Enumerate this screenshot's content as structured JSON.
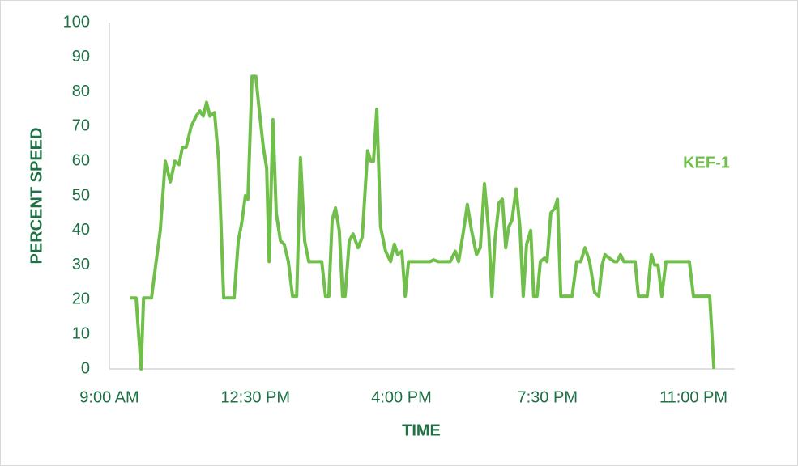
{
  "chart_data": {
    "type": "line",
    "xlabel": "TIME",
    "ylabel": "PERCENT SPEED",
    "x": [
      9.49,
      9.64,
      9.76,
      9.82,
      10.01,
      10.11,
      10.22,
      10.34,
      10.46,
      10.57,
      10.67,
      10.75,
      10.84,
      10.96,
      11.08,
      11.17,
      11.25,
      11.33,
      11.41,
      11.52,
      11.62,
      11.74,
      11.99,
      12.09,
      12.17,
      12.26,
      12.32,
      12.42,
      12.51,
      12.59,
      12.69,
      12.77,
      12.83,
      12.92,
      13.0,
      13.1,
      13.19,
      13.29,
      13.39,
      13.49,
      13.58,
      13.68,
      13.78,
      13.87,
      14.09,
      14.18,
      14.26,
      14.34,
      14.42,
      14.51,
      14.59,
      14.65,
      14.75,
      14.84,
      14.96,
      15.06,
      15.19,
      15.27,
      15.33,
      15.41,
      15.5,
      15.62,
      15.74,
      15.83,
      15.91,
      16.01,
      16.09,
      16.17,
      16.69,
      16.77,
      16.88,
      17.17,
      17.29,
      17.37,
      17.49,
      17.58,
      17.68,
      17.8,
      17.89,
      17.99,
      18.09,
      18.17,
      18.24,
      18.34,
      18.42,
      18.5,
      18.57,
      18.65,
      18.75,
      18.84,
      18.92,
      19.0,
      19.1,
      19.17,
      19.25,
      19.33,
      19.43,
      19.49,
      19.58,
      19.68,
      19.74,
      19.82,
      20.09,
      20.2,
      20.3,
      20.4,
      20.51,
      20.63,
      20.73,
      20.81,
      20.88,
      20.98,
      21.1,
      21.17,
      21.25,
      21.33,
      21.6,
      21.68,
      21.89,
      21.99,
      22.07,
      22.15,
      22.24,
      22.34,
      22.9,
      23.0,
      23.39,
      23.49
    ],
    "series": [
      {
        "name": "KEF-1",
        "color": "#70bf4a",
        "values": [
          20.5,
          20.5,
          0,
          20.5,
          20.5,
          30,
          40,
          60,
          54,
          60,
          59,
          64,
          64,
          70,
          73,
          74.5,
          73,
          77,
          73,
          74,
          60,
          20.5,
          20.5,
          37,
          42,
          50,
          49,
          84.5,
          84.5,
          75,
          64,
          58,
          31,
          72,
          45,
          37,
          36,
          31,
          21,
          21,
          61,
          37,
          31,
          31,
          31,
          21,
          21,
          43,
          46.5,
          40,
          21,
          21,
          37,
          39,
          35,
          38,
          63,
          60,
          60,
          75,
          41,
          34,
          31,
          36,
          33,
          34,
          21,
          31,
          31,
          31.5,
          31,
          31,
          34,
          31,
          40,
          47.5,
          40,
          33,
          35,
          53.5,
          40,
          21,
          37,
          48,
          49,
          35,
          41,
          43,
          52,
          41,
          21,
          36,
          40,
          21,
          21,
          31,
          32,
          31,
          45,
          46.5,
          49,
          21,
          21,
          31,
          31,
          35,
          31,
          22,
          21,
          30,
          33,
          32,
          31,
          31,
          33,
          31,
          31,
          21,
          21,
          33,
          30,
          30,
          21,
          31,
          31,
          21,
          21,
          0
        ]
      }
    ],
    "xlim": [
      9,
      24
    ],
    "xticks": [
      {
        "value": 9,
        "label": "9:00 AM"
      },
      {
        "value": 12.5,
        "label": "12:30 PM"
      },
      {
        "value": 16,
        "label": "4:00 PM"
      },
      {
        "value": 19.5,
        "label": "7:30 PM"
      },
      {
        "value": 23,
        "label": "11:00 PM"
      }
    ],
    "ylim": [
      0,
      100
    ],
    "yticks": [
      0,
      10,
      20,
      30,
      40,
      50,
      60,
      70,
      80,
      90,
      100
    ],
    "grid": false,
    "text_color": "#1e7145"
  }
}
